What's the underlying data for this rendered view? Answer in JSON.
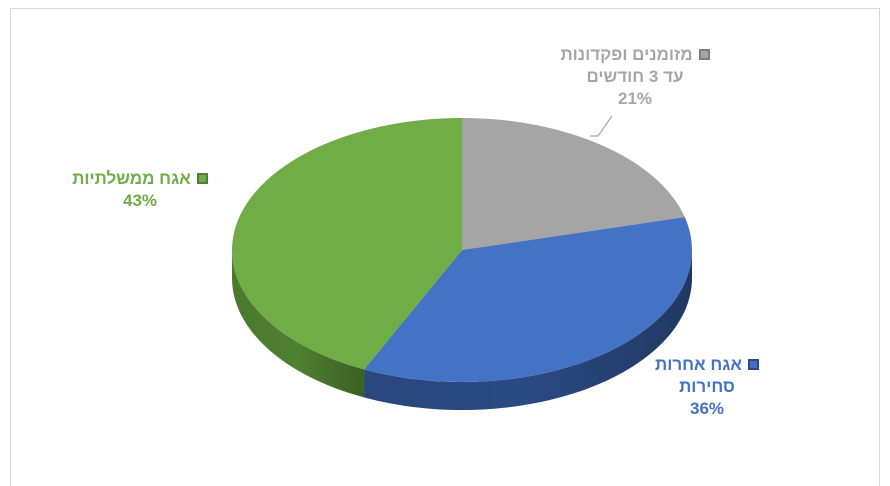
{
  "chart_data": {
    "type": "pie",
    "style": "3d",
    "slices": [
      {
        "label_lines": [
          "מזומנים ופקדונות",
          "עד 3 חודשים"
        ],
        "value": 21,
        "pct_label": "21%",
        "color": "#a5a5a5",
        "side_color": "#7f7f7f",
        "label_color": "#a6a6a6"
      },
      {
        "label_lines": [
          "אגח אחרות",
          "סחירות"
        ],
        "value": 36,
        "pct_label": "36%",
        "color": "#4472c4",
        "side_color": "#2b4a83",
        "label_color": "#4472c4"
      },
      {
        "label_lines": [
          "אגח ממשלתיות"
        ],
        "value": 43,
        "pct_label": "43%",
        "color": "#70ad47",
        "side_color": "#4f7f30",
        "label_color": "#70ad47"
      }
    ]
  }
}
